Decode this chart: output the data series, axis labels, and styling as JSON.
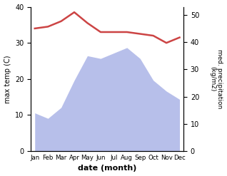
{
  "months": [
    "Jan",
    "Feb",
    "Mar",
    "Apr",
    "May",
    "Jun",
    "Jul",
    "Aug",
    "Sep",
    "Oct",
    "Nov",
    "Dec"
  ],
  "month_positions": [
    0,
    1,
    2,
    3,
    4,
    5,
    6,
    7,
    8,
    9,
    10,
    11
  ],
  "temperature": [
    34,
    34.5,
    36,
    38.5,
    35.5,
    33,
    33,
    33,
    32.5,
    32,
    30,
    31.5
  ],
  "rainfall": [
    14,
    12,
    16,
    26,
    35,
    34,
    36,
    38,
    34,
    26,
    22,
    19
  ],
  "temp_color": "#cc4444",
  "rain_color": "#b0b8e8",
  "ylabel_left": "max temp (C)",
  "ylabel_right": "med. precipitation\n(kg/m2)",
  "xlabel": "date (month)",
  "ylim_left": [
    0,
    40
  ],
  "ylim_right": [
    0,
    53
  ],
  "yticks_left": [
    0,
    10,
    20,
    30,
    40
  ],
  "yticks_right": [
    0,
    10,
    20,
    30,
    40,
    50
  ],
  "background_color": "#ffffff"
}
